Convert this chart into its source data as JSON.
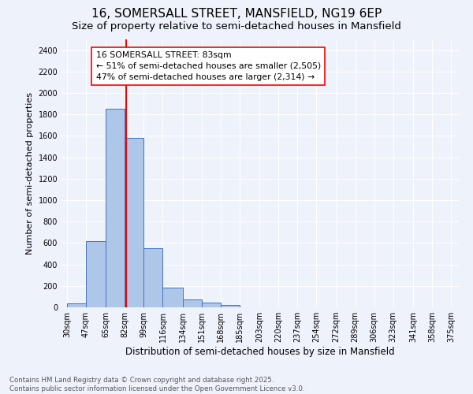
{
  "title1": "16, SOMERSALL STREET, MANSFIELD, NG19 6EP",
  "title2": "Size of property relative to semi-detached houses in Mansfield",
  "xlabel": "Distribution of semi-detached houses by size in Mansfield",
  "ylabel": "Number of semi-detached properties",
  "footer1": "Contains HM Land Registry data © Crown copyright and database right 2025.",
  "footer2": "Contains public sector information licensed under the Open Government Licence v3.0.",
  "annotation_line1": "16 SOMERSALL STREET: 83sqm",
  "annotation_line2": "← 51% of semi-detached houses are smaller (2,505)",
  "annotation_line3": "47% of semi-detached houses are larger (2,314) →",
  "bar_left_edges": [
    30,
    47,
    65,
    82,
    99,
    116,
    134,
    151,
    168,
    185,
    203,
    220,
    237,
    254,
    272,
    289,
    306,
    323,
    341,
    358
  ],
  "bar_widths": [
    17,
    18,
    17,
    17,
    17,
    18,
    17,
    17,
    17,
    18,
    17,
    17,
    17,
    18,
    17,
    17,
    17,
    18,
    17,
    17
  ],
  "bar_heights": [
    35,
    620,
    1850,
    1580,
    550,
    185,
    70,
    42,
    22,
    0,
    0,
    0,
    0,
    0,
    0,
    0,
    0,
    0,
    0,
    0
  ],
  "bar_color": "#aec6e8",
  "bar_edge_color": "#4472c4",
  "tick_labels": [
    "30sqm",
    "47sqm",
    "65sqm",
    "82sqm",
    "99sqm",
    "116sqm",
    "134sqm",
    "151sqm",
    "168sqm",
    "185sqm",
    "203sqm",
    "220sqm",
    "237sqm",
    "254sqm",
    "272sqm",
    "289sqm",
    "306sqm",
    "323sqm",
    "341sqm",
    "358sqm",
    "375sqm"
  ],
  "tick_positions": [
    30,
    47,
    65,
    82,
    99,
    116,
    134,
    151,
    168,
    185,
    203,
    220,
    237,
    254,
    272,
    289,
    306,
    323,
    341,
    358,
    375
  ],
  "yticks": [
    0,
    200,
    400,
    600,
    800,
    1000,
    1200,
    1400,
    1600,
    1800,
    2000,
    2200,
    2400
  ],
  "ylim": [
    0,
    2500
  ],
  "xlim": [
    25,
    382
  ],
  "red_line_x": 83,
  "bg_color": "#eef2fb",
  "plot_bg_color": "#eef2fb",
  "grid_color": "#ffffff",
  "title_fontsize": 11,
  "subtitle_fontsize": 9.5,
  "annotation_fontsize": 7.8,
  "tick_fontsize": 7,
  "ylabel_fontsize": 8,
  "xlabel_fontsize": 8.5,
  "footer_fontsize": 6.2
}
